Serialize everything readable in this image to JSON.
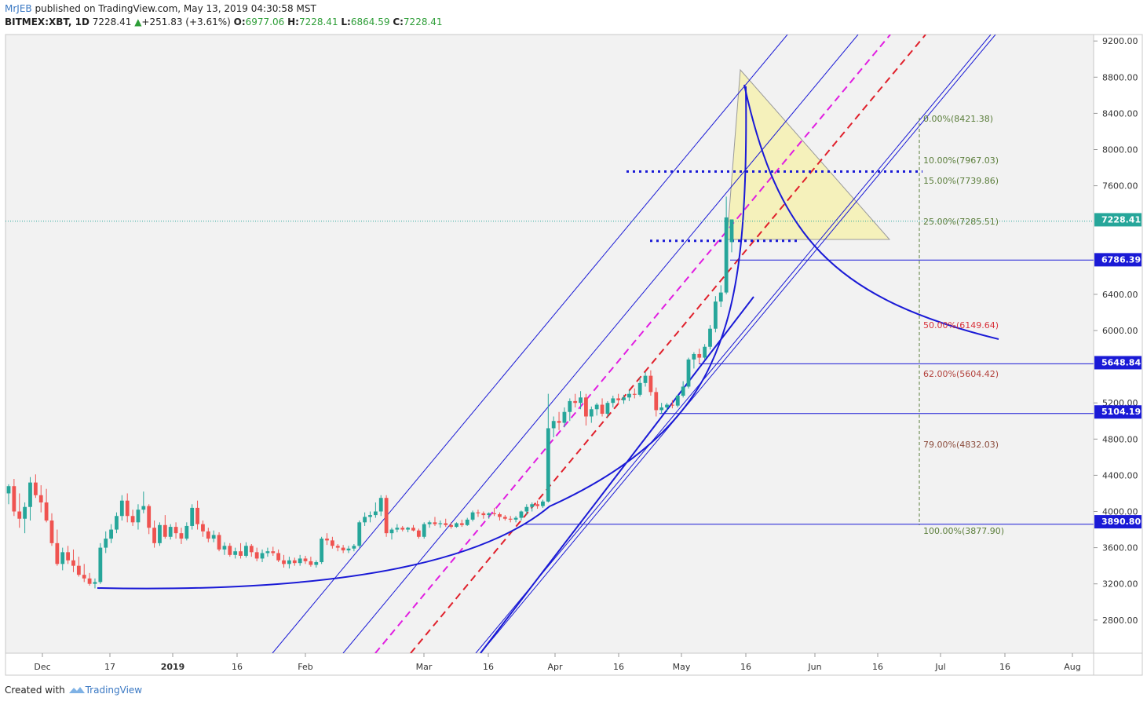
{
  "header": {
    "author": "MrJEB",
    "published": "published on TradingView.com, May 13, 2019 04:30:58 MST",
    "symbol": "BITMEX:XBT, 1D",
    "last": "7228.41",
    "change": "+251.83 (+3.61%)",
    "o_label": "O:",
    "o": "6977.06",
    "h_label": "H:",
    "h": "7228.41",
    "l_label": "L:",
    "l": "6864.59",
    "c_label": "C:",
    "c": "7228.41"
  },
  "footer": {
    "created": "Created with",
    "brand": "TradingView"
  },
  "colors": {
    "up": "#26a69a",
    "down": "#ef5350",
    "blue": "#1a1ad6",
    "magenta": "#e11de1",
    "red": "#e0202b",
    "fib_green": "#5a7d3a",
    "fib_red": "#d8323a",
    "bg": "#f2f2f2"
  },
  "chart_data": {
    "type": "candlestick",
    "symbol": "BITMEX:XBT",
    "interval": "1D",
    "ylim": [
      2500,
      9350
    ],
    "y_ticks": [
      "9200.00",
      "8800.00",
      "8400.00",
      "8000.00",
      "7600.00",
      "6400.00",
      "6000.00",
      "5200.00",
      "4800.00",
      "4400.00",
      "4000.00",
      "3600.00",
      "3200.00",
      "2800.00"
    ],
    "x_ticks": [
      "Dec",
      "17",
      "2019",
      "16",
      "Feb",
      "Mar",
      "16",
      "Apr",
      "16",
      "May",
      "16",
      "Jun",
      "16",
      "Jul",
      "16",
      "Aug"
    ],
    "price_labels": [
      {
        "value": 7228.41,
        "text": "7228.41",
        "style": "last"
      },
      {
        "value": 6786.39,
        "text": "6786.39",
        "style": "blue"
      },
      {
        "value": 5648.84,
        "text": "5648.84",
        "style": "blue"
      },
      {
        "value": 5104.19,
        "text": "5104.19",
        "style": "blue"
      },
      {
        "value": 3890.8,
        "text": "3890.80",
        "style": "blue"
      }
    ],
    "fib_levels": [
      {
        "text": "0.00%(8421.38)",
        "value": 8421.38,
        "color": "#5a7d3a"
      },
      {
        "text": "10.00%(7967.03)",
        "value": 7967.03,
        "color": "#5a7d3a"
      },
      {
        "text": "15.00%(7739.86)",
        "value": 7739.86,
        "color": "#5a7d3a"
      },
      {
        "text": "25.00%(7285.51)",
        "value": 7285.51,
        "color": "#5a7d3a"
      },
      {
        "text": "50.00%(6149.64)",
        "value": 6149.64,
        "color": "#d8323a"
      },
      {
        "text": "62.00%(5604.42)",
        "value": 5604.42,
        "color": "#b2403a"
      },
      {
        "text": "79.00%(4832.03)",
        "value": 4832.03,
        "color": "#8a4a3a"
      },
      {
        "text": "100.00%(3877.90)",
        "value": 3877.9,
        "color": "#5a7d3a"
      }
    ],
    "candles": [
      [
        4200,
        4300,
        4080,
        4280
      ],
      [
        4280,
        4360,
        3950,
        4000
      ],
      [
        4000,
        4200,
        3820,
        3920
      ],
      [
        3920,
        4100,
        3760,
        4050
      ],
      [
        4050,
        4380,
        3900,
        4320
      ],
      [
        4320,
        4410,
        4150,
        4180
      ],
      [
        4180,
        4290,
        3990,
        4100
      ],
      [
        4100,
        4250,
        3880,
        3900
      ],
      [
        3900,
        3980,
        3620,
        3650
      ],
      [
        3650,
        3800,
        3400,
        3420
      ],
      [
        3420,
        3600,
        3350,
        3550
      ],
      [
        3550,
        3620,
        3420,
        3460
      ],
      [
        3460,
        3580,
        3330,
        3400
      ],
      [
        3400,
        3500,
        3280,
        3300
      ],
      [
        3300,
        3420,
        3220,
        3260
      ],
      [
        3260,
        3320,
        3180,
        3200
      ],
      [
        3200,
        3260,
        3150,
        3220
      ],
      [
        3220,
        3650,
        3200,
        3600
      ],
      [
        3600,
        3780,
        3540,
        3700
      ],
      [
        3700,
        3860,
        3650,
        3800
      ],
      [
        3800,
        3990,
        3760,
        3950
      ],
      [
        3950,
        4180,
        3900,
        4120
      ],
      [
        4120,
        4200,
        3880,
        3950
      ],
      [
        3950,
        4020,
        3840,
        3880
      ],
      [
        3880,
        4080,
        3800,
        4020
      ],
      [
        4020,
        4220,
        3980,
        4060
      ],
      [
        4060,
        4080,
        3750,
        3820
      ],
      [
        3820,
        3900,
        3600,
        3650
      ],
      [
        3650,
        3880,
        3620,
        3850
      ],
      [
        3850,
        3960,
        3700,
        3720
      ],
      [
        3720,
        3860,
        3690,
        3830
      ],
      [
        3830,
        3880,
        3700,
        3760
      ],
      [
        3760,
        3820,
        3640,
        3700
      ],
      [
        3700,
        3880,
        3680,
        3840
      ],
      [
        3840,
        4080,
        3800,
        4040
      ],
      [
        4040,
        4120,
        3800,
        3860
      ],
      [
        3860,
        3900,
        3720,
        3780
      ],
      [
        3780,
        3820,
        3660,
        3700
      ],
      [
        3700,
        3790,
        3660,
        3740
      ],
      [
        3740,
        3770,
        3560,
        3580
      ],
      [
        3580,
        3660,
        3520,
        3620
      ],
      [
        3620,
        3650,
        3500,
        3520
      ],
      [
        3520,
        3600,
        3480,
        3560
      ],
      [
        3560,
        3650,
        3480,
        3510
      ],
      [
        3510,
        3660,
        3490,
        3620
      ],
      [
        3620,
        3640,
        3500,
        3550
      ],
      [
        3550,
        3600,
        3450,
        3480
      ],
      [
        3480,
        3580,
        3440,
        3540
      ],
      [
        3540,
        3600,
        3500,
        3560
      ],
      [
        3560,
        3610,
        3510,
        3540
      ],
      [
        3540,
        3580,
        3440,
        3460
      ],
      [
        3460,
        3520,
        3380,
        3420
      ],
      [
        3420,
        3500,
        3370,
        3460
      ],
      [
        3460,
        3490,
        3400,
        3430
      ],
      [
        3430,
        3520,
        3400,
        3480
      ],
      [
        3480,
        3510,
        3420,
        3450
      ],
      [
        3450,
        3500,
        3390,
        3410
      ],
      [
        3410,
        3460,
        3380,
        3440
      ],
      [
        3440,
        3720,
        3420,
        3700
      ],
      [
        3700,
        3760,
        3630,
        3680
      ],
      [
        3680,
        3720,
        3590,
        3620
      ],
      [
        3620,
        3640,
        3560,
        3600
      ],
      [
        3600,
        3630,
        3540,
        3570
      ],
      [
        3570,
        3620,
        3540,
        3590
      ],
      [
        3590,
        3640,
        3560,
        3620
      ],
      [
        3620,
        3900,
        3600,
        3880
      ],
      [
        3880,
        3990,
        3840,
        3940
      ],
      [
        3940,
        4000,
        3880,
        3960
      ],
      [
        3960,
        4100,
        3930,
        4000
      ],
      [
        4000,
        4180,
        3950,
        4150
      ],
      [
        4150,
        4180,
        3720,
        3760
      ],
      [
        3760,
        3820,
        3690,
        3800
      ],
      [
        3800,
        3860,
        3770,
        3820
      ],
      [
        3820,
        3840,
        3780,
        3800
      ],
      [
        3800,
        3830,
        3770,
        3820
      ],
      [
        3820,
        3850,
        3780,
        3790
      ],
      [
        3790,
        3810,
        3700,
        3720
      ],
      [
        3720,
        3880,
        3700,
        3860
      ],
      [
        3860,
        3900,
        3820,
        3880
      ],
      [
        3880,
        3940,
        3840,
        3860
      ],
      [
        3860,
        3900,
        3820,
        3870
      ],
      [
        3870,
        3920,
        3830,
        3850
      ],
      [
        3850,
        3880,
        3810,
        3830
      ],
      [
        3830,
        3880,
        3820,
        3870
      ],
      [
        3870,
        3910,
        3830,
        3850
      ],
      [
        3850,
        3930,
        3840,
        3910
      ],
      [
        3910,
        4010,
        3890,
        3990
      ],
      [
        3990,
        4020,
        3940,
        3980
      ],
      [
        3980,
        4000,
        3920,
        3960
      ],
      [
        3960,
        3990,
        3920,
        3980
      ],
      [
        3980,
        4040,
        3950,
        3970
      ],
      [
        3970,
        3990,
        3900,
        3940
      ],
      [
        3940,
        3960,
        3900,
        3920
      ],
      [
        3920,
        3950,
        3880,
        3910
      ],
      [
        3910,
        3950,
        3880,
        3930
      ],
      [
        3930,
        4010,
        3900,
        4000
      ],
      [
        4000,
        4080,
        3960,
        4050
      ],
      [
        4050,
        4100,
        4000,
        4080
      ],
      [
        4080,
        4120,
        4030,
        4060
      ],
      [
        4060,
        4130,
        4040,
        4110
      ],
      [
        4110,
        5300,
        4100,
        4920
      ],
      [
        4920,
        5050,
        4820,
        5000
      ],
      [
        5000,
        5100,
        4900,
        4980
      ],
      [
        4980,
        5150,
        4930,
        5100
      ],
      [
        5100,
        5250,
        5000,
        5220
      ],
      [
        5220,
        5300,
        5150,
        5200
      ],
      [
        5200,
        5330,
        5130,
        5260
      ],
      [
        5260,
        5300,
        4950,
        5050
      ],
      [
        5050,
        5160,
        4980,
        5130
      ],
      [
        5130,
        5200,
        5060,
        5180
      ],
      [
        5180,
        5250,
        5050,
        5080
      ],
      [
        5080,
        5220,
        5040,
        5200
      ],
      [
        5200,
        5280,
        5150,
        5250
      ],
      [
        5250,
        5300,
        5180,
        5230
      ],
      [
        5230,
        5290,
        5190,
        5260
      ],
      [
        5260,
        5340,
        5220,
        5300
      ],
      [
        5300,
        5360,
        5250,
        5290
      ],
      [
        5290,
        5480,
        5270,
        5420
      ],
      [
        5420,
        5540,
        5380,
        5500
      ],
      [
        5500,
        5560,
        5280,
        5320
      ],
      [
        5320,
        5370,
        5050,
        5120
      ],
      [
        5120,
        5200,
        5080,
        5150
      ],
      [
        5150,
        5200,
        5100,
        5180
      ],
      [
        5180,
        5230,
        5140,
        5170
      ],
      [
        5170,
        5290,
        5150,
        5280
      ],
      [
        5280,
        5440,
        5260,
        5380
      ],
      [
        5380,
        5700,
        5360,
        5680
      ],
      [
        5680,
        5760,
        5580,
        5740
      ],
      [
        5740,
        5800,
        5640,
        5700
      ],
      [
        5700,
        5850,
        5680,
        5820
      ],
      [
        5820,
        6060,
        5790,
        6020
      ],
      [
        6020,
        6380,
        5980,
        6320
      ],
      [
        6320,
        6500,
        6260,
        6420
      ],
      [
        6420,
        7480,
        6400,
        7250
      ],
      [
        6977,
        7228,
        6864,
        7228
      ]
    ],
    "patterns": [
      {
        "name": "ascending channel",
        "type": "parallel lines"
      },
      {
        "name": "parabolic curve",
        "type": "curve"
      },
      {
        "name": "triangle",
        "type": "shape"
      }
    ]
  }
}
